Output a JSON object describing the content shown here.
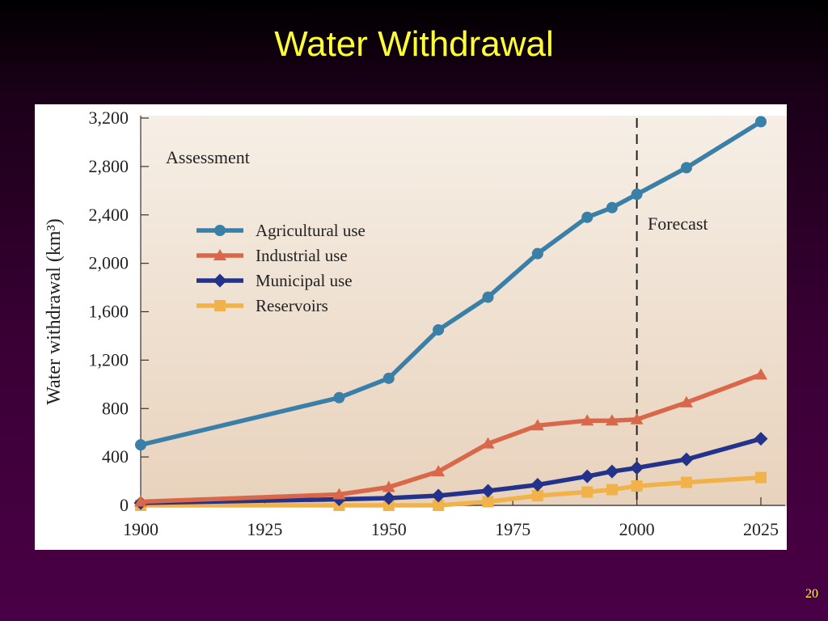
{
  "slide": {
    "title": "Water Withdrawal",
    "page_number": "20"
  },
  "chart_data": {
    "type": "line",
    "ylabel": "Water withdrawal (km³)",
    "xlim": [
      1900,
      2025
    ],
    "ylim": [
      0,
      3200
    ],
    "grid": false,
    "legend_position": "upper-left",
    "x_ticks": [
      1900,
      1925,
      1950,
      1975,
      2000,
      2025
    ],
    "x_tick_labels": [
      "1900",
      "1925",
      "1950",
      "1975",
      "2000",
      "2025"
    ],
    "y_ticks": [
      0,
      400,
      800,
      1200,
      1600,
      2000,
      2400,
      2800,
      3200
    ],
    "y_tick_labels": [
      "0",
      "400",
      "800",
      "1,200",
      "1,600",
      "2,000",
      "2,400",
      "2,800",
      "3,200"
    ],
    "annotations": {
      "assessment": "Assessment",
      "forecast": "Forecast",
      "divider_x": 2000
    },
    "series": [
      {
        "name": "Agricultural use",
        "color": "#3a7fa8",
        "marker": "circle",
        "x": [
          1900,
          1940,
          1950,
          1960,
          1970,
          1980,
          1990,
          1995,
          2000,
          2010,
          2025
        ],
        "y": [
          500,
          890,
          1050,
          1450,
          1720,
          2080,
          2380,
          2460,
          2570,
          2790,
          3170
        ]
      },
      {
        "name": "Industrial use",
        "color": "#d9684a",
        "marker": "triangle",
        "x": [
          1900,
          1940,
          1950,
          1960,
          1970,
          1980,
          1990,
          1995,
          2000,
          2010,
          2025
        ],
        "y": [
          30,
          90,
          150,
          280,
          510,
          660,
          700,
          700,
          710,
          850,
          1080
        ]
      },
      {
        "name": "Municipal use",
        "color": "#23338c",
        "marker": "diamond",
        "x": [
          1900,
          1940,
          1950,
          1960,
          1970,
          1980,
          1990,
          1995,
          2000,
          2010,
          2025
        ],
        "y": [
          20,
          50,
          60,
          80,
          120,
          170,
          240,
          280,
          310,
          380,
          550
        ]
      },
      {
        "name": "Reservoirs",
        "color": "#f2b24a",
        "marker": "square",
        "x": [
          1900,
          1940,
          1950,
          1960,
          1970,
          1980,
          1990,
          1995,
          2000,
          2010,
          2025
        ],
        "y": [
          0,
          0,
          0,
          0,
          30,
          80,
          110,
          130,
          160,
          190,
          230
        ]
      }
    ]
  }
}
